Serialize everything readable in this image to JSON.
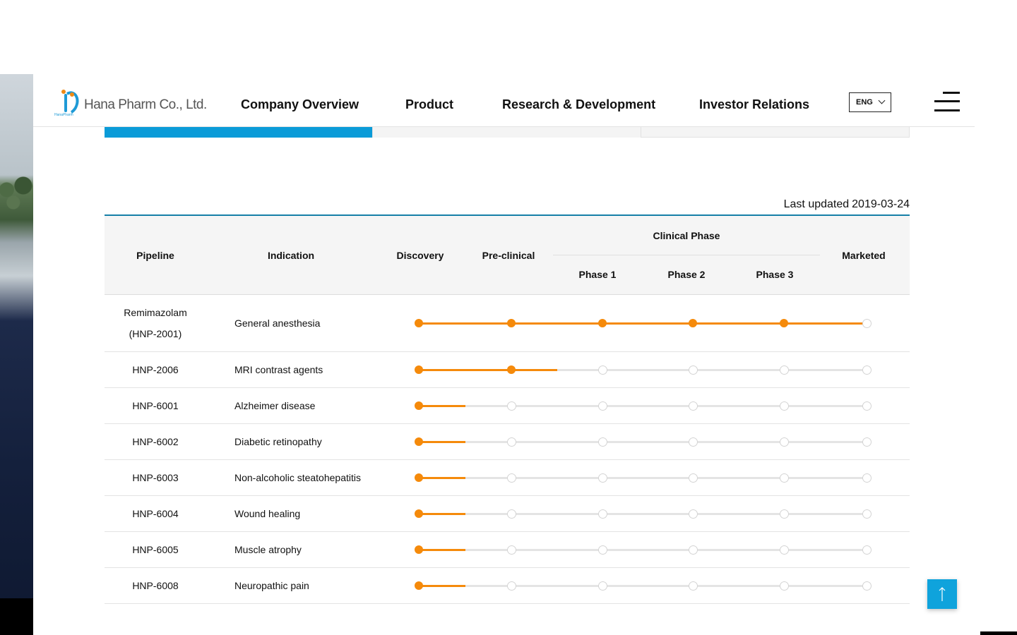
{
  "header": {
    "logo_text": "Hana Pharm Co., Ltd.",
    "logo_small": "HanaPharm",
    "nav": [
      "Company Overview",
      "Product",
      "Research & Development",
      "Investor Relations"
    ],
    "language": "ENG",
    "brand_color": "#1e9ad6",
    "accent_color": "#f08a14"
  },
  "last_updated": {
    "label": "Last updated",
    "date": "2019-03-24"
  },
  "table": {
    "headers": {
      "pipeline": "Pipeline",
      "indication": "Indication",
      "discovery": "Discovery",
      "preclinical": "Pre-clinical",
      "clinical_phase": "Clinical Phase",
      "phase1": "Phase 1",
      "phase2": "Phase 2",
      "phase3": "Phase 3",
      "marketed": "Marketed"
    },
    "progress_color": "#f58a0b",
    "rows": [
      {
        "pipeline": "Remimazolam",
        "pipeline_code": "(HNP-2001)",
        "indication": "General anesthesia",
        "progress_stage": 5.5
      },
      {
        "pipeline": "HNP-2006",
        "indication": "MRI contrast agents",
        "progress_stage": 1.5
      },
      {
        "pipeline": "HNP-6001",
        "indication": "Alzheimer disease",
        "progress_stage": 0.5
      },
      {
        "pipeline": "HNP-6002",
        "indication": "Diabetic retinopathy",
        "progress_stage": 0.5
      },
      {
        "pipeline": "HNP-6003",
        "indication": "Non-alcoholic steatohepatitis",
        "progress_stage": 0.5
      },
      {
        "pipeline": "HNP-6004",
        "indication": "Wound healing",
        "progress_stage": 0.5
      },
      {
        "pipeline": "HNP-6005",
        "indication": "Muscle atrophy",
        "progress_stage": 0.5
      },
      {
        "pipeline": "HNP-6008",
        "indication": "Neuropathic pain",
        "progress_stage": 0.5
      }
    ]
  },
  "top_button": {
    "icon": "arrow-up-icon",
    "color": "#0fa3dc"
  }
}
